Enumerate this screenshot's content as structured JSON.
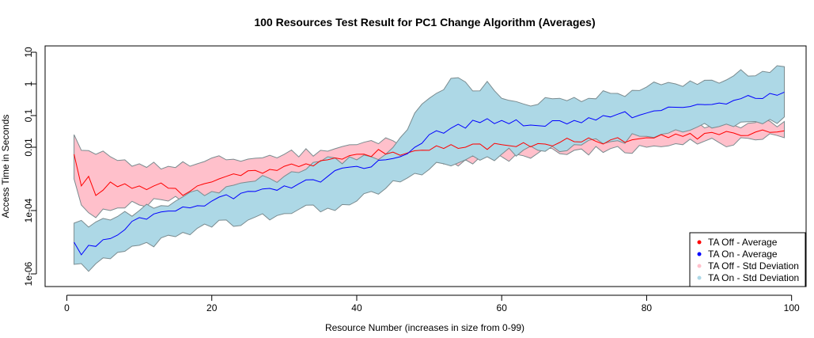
{
  "chart_data": {
    "type": "line",
    "title": "100 Resources Test Result for PC1 Change Algorithm (Averages)",
    "xlabel": "Resource Number (increases in size from 0-99)",
    "ylabel": "Access Time in Seconds",
    "xlim": [
      -3,
      102
    ],
    "ylim_log10": [
      -6.4,
      1.2
    ],
    "y_scale": "log",
    "x_ticks": [
      0,
      20,
      40,
      60,
      80,
      100
    ],
    "x_tick_labels": [
      "0",
      "20",
      "40",
      "60",
      "80",
      "100"
    ],
    "y_ticks_log10": [
      -6,
      -4,
      -2,
      -1,
      0,
      1
    ],
    "y_tick_labels": [
      "1e-06",
      "1e-04",
      "0.01",
      "0.1",
      "1",
      "10"
    ],
    "grid": false,
    "legend_position": "bottom-right",
    "legend": [
      {
        "label": "TA Off - Average",
        "color": "#ff0000",
        "kind": "point"
      },
      {
        "label": "TA On - Average",
        "color": "#0000ff",
        "kind": "point"
      },
      {
        "label": "TA Off - Std Deviation",
        "color": "#ffc0cb",
        "kind": "point"
      },
      {
        "label": "TA On - Std Deviation",
        "color": "#add8e6",
        "kind": "point"
      }
    ],
    "x_start": 1,
    "x_end": 99,
    "series": [
      {
        "name": "TA Off - Average",
        "color": "#ff0000",
        "y_at": [
          [
            1,
            0.006
          ],
          [
            2,
            0.0006
          ],
          [
            3,
            0.0012
          ],
          [
            4,
            0.0003
          ],
          [
            6,
            0.0008
          ],
          [
            8,
            0.0007
          ],
          [
            9,
            0.0005
          ],
          [
            12,
            0.0006
          ],
          [
            15,
            0.0005
          ],
          [
            16,
            0.0003
          ],
          [
            18,
            0.0006
          ],
          [
            20,
            0.0008
          ],
          [
            22,
            0.0012
          ],
          [
            25,
            0.0018
          ],
          [
            28,
            0.002
          ],
          [
            30,
            0.0025
          ],
          [
            33,
            0.003
          ],
          [
            36,
            0.004
          ],
          [
            40,
            0.006
          ],
          [
            45,
            0.007
          ],
          [
            50,
            0.008
          ],
          [
            55,
            0.01
          ],
          [
            60,
            0.012
          ],
          [
            65,
            0.013
          ],
          [
            70,
            0.015
          ],
          [
            75,
            0.017
          ],
          [
            80,
            0.02
          ],
          [
            85,
            0.022
          ],
          [
            90,
            0.025
          ],
          [
            95,
            0.03
          ],
          [
            99,
            0.033
          ]
        ]
      },
      {
        "name": "TA On - Average",
        "color": "#0000ff",
        "y_at": [
          [
            1,
            1e-05
          ],
          [
            2,
            4e-06
          ],
          [
            3,
            8e-06
          ],
          [
            5,
            1.2e-05
          ],
          [
            8,
            2.5e-05
          ],
          [
            10,
            6e-05
          ],
          [
            13,
            9e-05
          ],
          [
            16,
            0.00013
          ],
          [
            20,
            0.0002
          ],
          [
            24,
            0.00035
          ],
          [
            28,
            0.0005
          ],
          [
            32,
            0.0007
          ],
          [
            36,
            0.0012
          ],
          [
            40,
            0.0025
          ],
          [
            44,
            0.004
          ],
          [
            46,
            0.005
          ],
          [
            48,
            0.01
          ],
          [
            50,
            0.025
          ],
          [
            53,
            0.04
          ],
          [
            57,
            0.06
          ],
          [
            60,
            0.07
          ],
          [
            64,
            0.05
          ],
          [
            70,
            0.07
          ],
          [
            75,
            0.09
          ],
          [
            80,
            0.12
          ],
          [
            85,
            0.18
          ],
          [
            90,
            0.25
          ],
          [
            95,
            0.35
          ],
          [
            99,
            0.55
          ]
        ]
      }
    ],
    "bands": [
      {
        "name": "TA Off - Std Deviation",
        "color": "#ffc0cb",
        "upper_at": [
          [
            1,
            0.025
          ],
          [
            2,
            0.008
          ],
          [
            4,
            0.006
          ],
          [
            6,
            0.005
          ],
          [
            8,
            0.004
          ],
          [
            10,
            0.003
          ],
          [
            14,
            0.0025
          ],
          [
            18,
            0.003
          ],
          [
            22,
            0.004
          ],
          [
            26,
            0.0045
          ],
          [
            30,
            0.006
          ],
          [
            35,
            0.008
          ],
          [
            40,
            0.012
          ],
          [
            45,
            0.016
          ],
          [
            50,
            0.02
          ],
          [
            55,
            0.025
          ],
          [
            60,
            0.03
          ],
          [
            65,
            0.035
          ],
          [
            70,
            0.038
          ],
          [
            75,
            0.04
          ],
          [
            80,
            0.045
          ],
          [
            85,
            0.05
          ],
          [
            90,
            0.055
          ],
          [
            95,
            0.06
          ],
          [
            99,
            0.065
          ]
        ],
        "lower_at": [
          [
            1,
            0.001
          ],
          [
            2,
            0.00015
          ],
          [
            4,
            6e-05
          ],
          [
            6,
            0.0001
          ],
          [
            8,
            0.00012
          ],
          [
            10,
            0.00015
          ],
          [
            14,
            0.0002
          ],
          [
            18,
            0.00025
          ],
          [
            22,
            0.0003
          ],
          [
            26,
            0.0005
          ],
          [
            30,
            0.0008
          ],
          [
            35,
            0.0012
          ],
          [
            40,
            0.002
          ],
          [
            45,
            0.0025
          ],
          [
            50,
            0.003
          ],
          [
            55,
            0.004
          ],
          [
            60,
            0.005
          ],
          [
            65,
            0.0065
          ],
          [
            70,
            0.008
          ],
          [
            75,
            0.009
          ],
          [
            80,
            0.01
          ],
          [
            85,
            0.012
          ],
          [
            90,
            0.014
          ],
          [
            95,
            0.017
          ],
          [
            99,
            0.02
          ]
        ]
      },
      {
        "name": "TA On - Std Deviation",
        "color": "#add8e6",
        "upper_at": [
          [
            1,
            4e-05
          ],
          [
            3,
            3e-05
          ],
          [
            6,
            5e-05
          ],
          [
            10,
            0.0001
          ],
          [
            15,
            0.0002
          ],
          [
            20,
            0.0004
          ],
          [
            25,
            0.0008
          ],
          [
            30,
            0.0012
          ],
          [
            33,
            0.002
          ],
          [
            36,
            0.005
          ],
          [
            38,
            0.003
          ],
          [
            42,
            0.005
          ],
          [
            44,
            0.006
          ],
          [
            46,
            0.02
          ],
          [
            48,
            0.12
          ],
          [
            50,
            0.35
          ],
          [
            53,
            1.5
          ],
          [
            56,
            0.6
          ],
          [
            58,
            1.2
          ],
          [
            60,
            0.35
          ],
          [
            64,
            0.2
          ],
          [
            68,
            0.35
          ],
          [
            72,
            0.35
          ],
          [
            76,
            0.5
          ],
          [
            80,
            0.8
          ],
          [
            84,
            1.0
          ],
          [
            88,
            1.3
          ],
          [
            92,
            1.8
          ],
          [
            96,
            2.5
          ],
          [
            99,
            3.5
          ]
        ],
        "lower_at": [
          [
            1,
            2e-06
          ],
          [
            3,
            1.2e-06
          ],
          [
            6,
            3e-06
          ],
          [
            10,
            8e-06
          ],
          [
            15,
            1.5e-05
          ],
          [
            20,
            3e-05
          ],
          [
            25,
            5e-05
          ],
          [
            30,
            8e-05
          ],
          [
            34,
            0.00015
          ],
          [
            37,
            0.0001
          ],
          [
            40,
            0.0002
          ],
          [
            42,
            0.0004
          ],
          [
            44,
            0.0005
          ],
          [
            46,
            0.0008
          ],
          [
            48,
            0.0015
          ],
          [
            50,
            0.002
          ],
          [
            52,
            0.003
          ],
          [
            55,
            0.004
          ],
          [
            58,
            0.005
          ],
          [
            60,
            0.006
          ],
          [
            65,
            0.008
          ],
          [
            70,
            0.012
          ],
          [
            75,
            0.015
          ],
          [
            80,
            0.022
          ],
          [
            85,
            0.03
          ],
          [
            90,
            0.045
          ],
          [
            95,
            0.065
          ],
          [
            99,
            0.09
          ]
        ]
      }
    ]
  }
}
